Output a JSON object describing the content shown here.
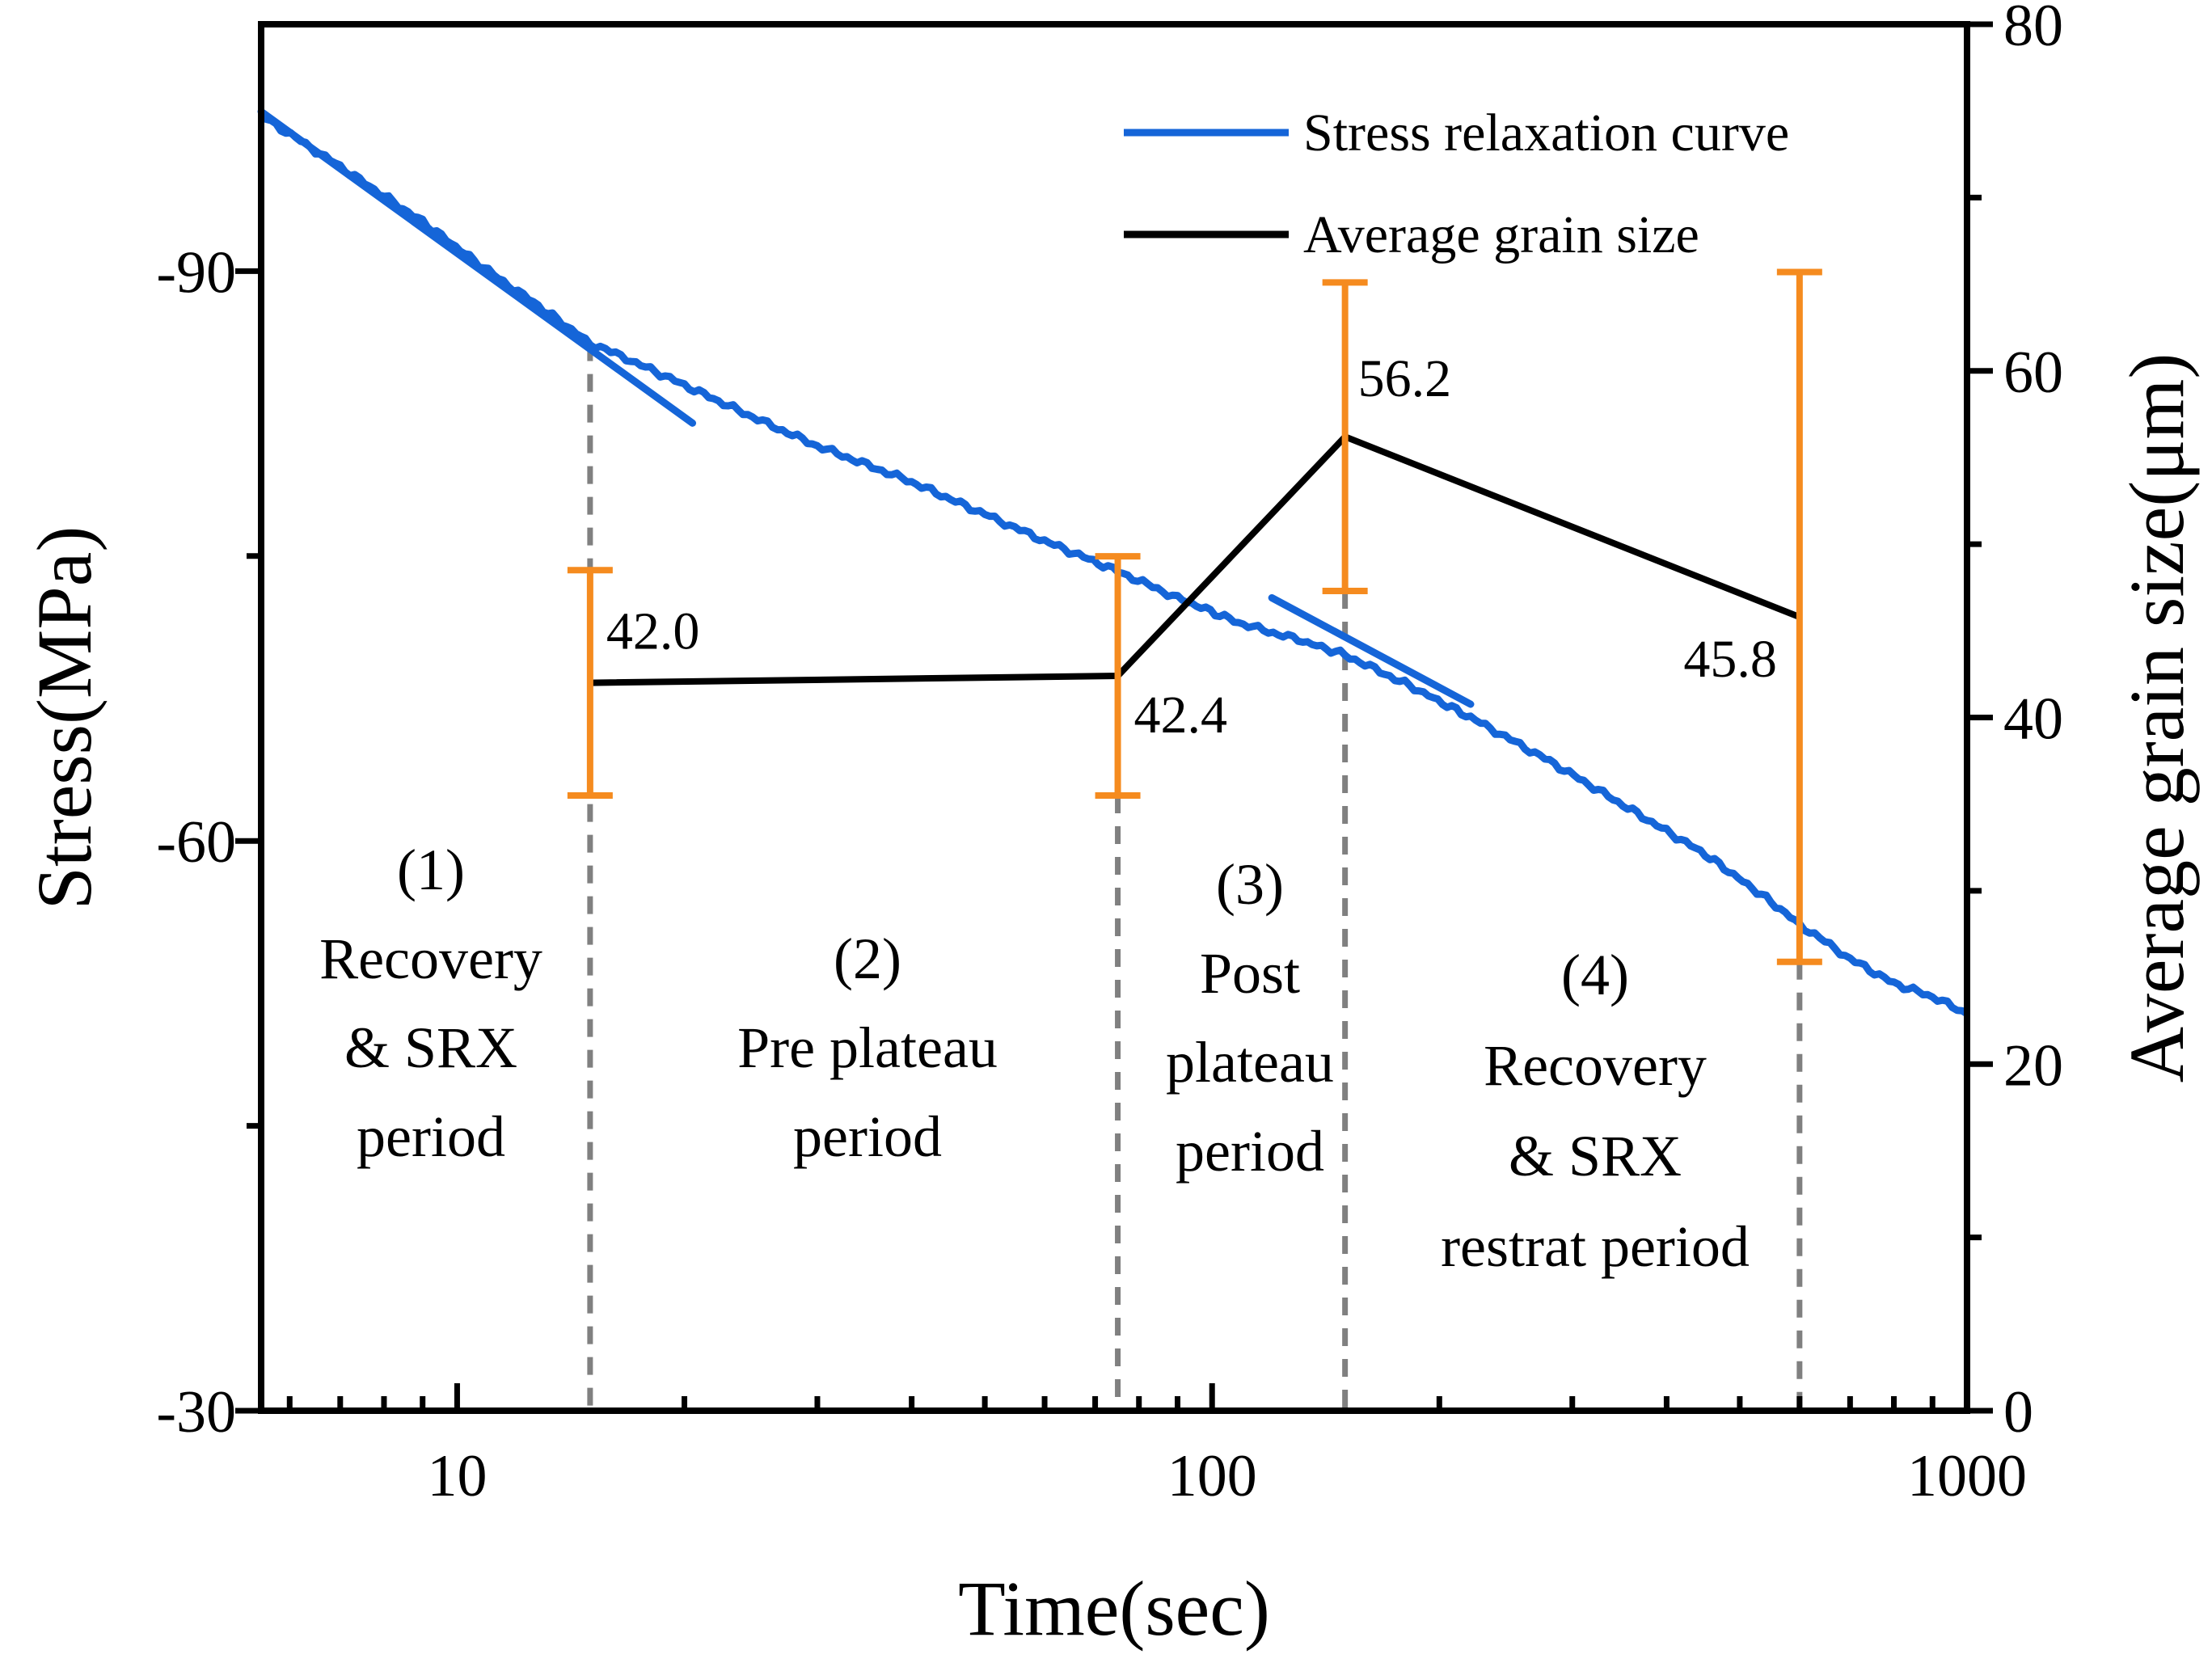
{
  "chart_data": {
    "type": "line",
    "title": "",
    "xlabel": "Time(sec)",
    "ylabel_left": "Stress(MPa)",
    "ylabel_right": "Average grain size(μm)",
    "xscale": "log",
    "xlim": [
      5.5,
      1000
    ],
    "ylim_left": [
      -30,
      -103
    ],
    "ylim_right": [
      0,
      80
    ],
    "x_ticks": [
      {
        "v": 10,
        "label": "10"
      },
      {
        "v": 100,
        "label": "100"
      },
      {
        "v": 1000,
        "label": "1000"
      }
    ],
    "y_left_ticks": [
      {
        "v": -90,
        "label": "-90"
      },
      {
        "v": -60,
        "label": "-60"
      },
      {
        "v": -30,
        "label": "-30"
      }
    ],
    "y_right_ticks": [
      {
        "v": 80,
        "label": "80"
      },
      {
        "v": 60,
        "label": "60"
      },
      {
        "v": 40,
        "label": "40"
      },
      {
        "v": 20,
        "label": "20"
      },
      {
        "v": 0,
        "label": "0"
      }
    ],
    "legend": {
      "position": "top-right",
      "entries": [
        {
          "label": "Stress relaxation curve",
          "color": "#1565d8"
        },
        {
          "label": "Average grain size",
          "color": "#000000"
        }
      ]
    },
    "series": [
      {
        "name": "Stress relaxation curve",
        "axis": "left",
        "color": "#1565d8",
        "x": [
          5.5,
          7,
          9,
          11,
          13,
          15,
          17,
          20,
          25,
          30,
          40,
          50,
          60,
          75,
          90,
          110,
          130,
          150,
          180,
          220,
          280,
          350,
          450,
          550,
          600,
          700,
          800,
          900,
          1000
        ],
        "y": [
          -98.2,
          -95.5,
          -92.6,
          -90.0,
          -88.0,
          -86.2,
          -85.3,
          -84.0,
          -82.2,
          -80.8,
          -78.9,
          -77.2,
          -75.8,
          -74.2,
          -72.8,
          -71.4,
          -70.6,
          -69.8,
          -68.3,
          -66.5,
          -64.2,
          -61.9,
          -59.3,
          -56.8,
          -55.6,
          -53.8,
          -52.5,
          -51.8,
          -50.9
        ]
      },
      {
        "name": "Recovery fit line (region 1)",
        "axis": "left",
        "color": "#1565d8",
        "x": [
          5.5,
          20.5
        ],
        "y": [
          -98.4,
          -82.0
        ]
      },
      {
        "name": "Recovery fit line (region 4)",
        "axis": "left",
        "color": "#1565d8",
        "x": [
          120,
          220
        ],
        "y": [
          -72.8,
          -67.2
        ]
      },
      {
        "name": "Average grain size",
        "axis": "right",
        "color": "#000000",
        "x": [
          15,
          75,
          150,
          600
        ],
        "y": [
          42.0,
          42.4,
          56.2,
          45.8
        ],
        "labels": [
          "42.0",
          "42.4",
          "56.2",
          "45.8"
        ],
        "error_bars": [
          {
            "low": 35.5,
            "high": 48.5
          },
          {
            "low": 35.5,
            "high": 49.3
          },
          {
            "low": 47.3,
            "high": 65.1
          },
          {
            "low": 25.9,
            "high": 65.7
          }
        ],
        "error_color": "#f58b1f"
      }
    ],
    "region_boundaries": [
      15,
      75,
      150,
      600
    ],
    "regions": [
      {
        "lines": [
          "(1)",
          "Recovery",
          "& SRX",
          "period"
        ]
      },
      {
        "lines": [
          "(2)",
          "Pre plateau",
          "period"
        ]
      },
      {
        "lines": [
          "(3)",
          "Post",
          "plateau",
          "period"
        ]
      },
      {
        "lines": [
          "(4)",
          "Recovery",
          "& SRX",
          "restrat period"
        ]
      }
    ]
  }
}
